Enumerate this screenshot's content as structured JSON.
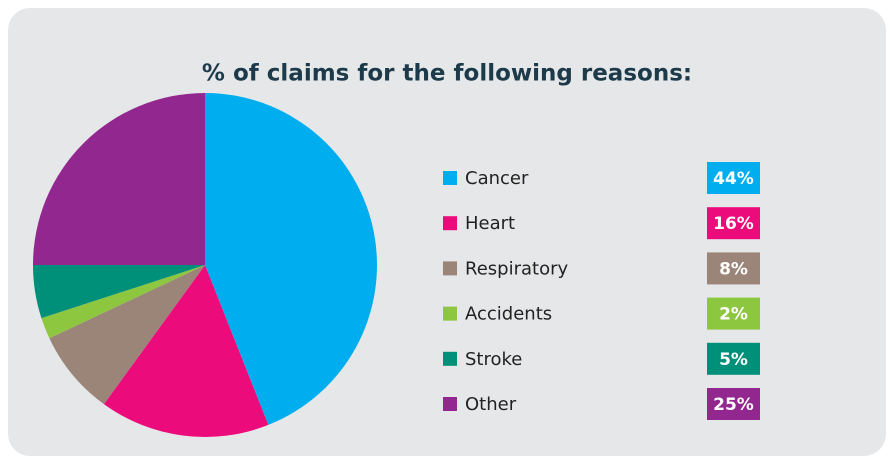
{
  "chart_data": {
    "type": "pie",
    "title": "% of claims for the following reasons:",
    "categories": [
      "Cancer",
      "Heart",
      "Respiratory",
      "Accidents",
      "Stroke",
      "Other"
    ],
    "values": [
      44,
      16,
      8,
      2,
      5,
      25
    ],
    "value_labels": [
      "44%",
      "16%",
      "8%",
      "2%",
      "5%",
      "25%"
    ],
    "colors": [
      "#00aeef",
      "#ec0b7a",
      "#9b8579",
      "#8dc63f",
      "#00907a",
      "#92278f"
    ],
    "legend": "right"
  }
}
